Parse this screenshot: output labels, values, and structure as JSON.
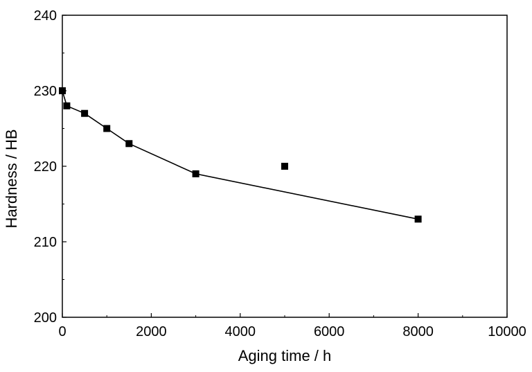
{
  "chart_data": {
    "type": "scatter",
    "title": "",
    "xlabel": "Aging time / h",
    "ylabel": "Hardness  / HB",
    "xlim": [
      0,
      10000
    ],
    "ylim": [
      200,
      240
    ],
    "xticks": [
      0,
      2000,
      4000,
      6000,
      8000,
      10000
    ],
    "yticks": [
      200,
      210,
      220,
      230,
      240
    ],
    "xtick_labels": [
      "0",
      "2000",
      "4000",
      "6000",
      "8000",
      "10000"
    ],
    "ytick_labels": [
      "200",
      "210",
      "220",
      "230",
      "240"
    ],
    "grid": false,
    "legend": "none",
    "series": [
      {
        "marker": "square",
        "color": "#000000",
        "points": [
          {
            "x": 0,
            "y": 230
          },
          {
            "x": 100,
            "y": 228
          },
          {
            "x": 500,
            "y": 227
          },
          {
            "x": 1000,
            "y": 225
          },
          {
            "x": 1500,
            "y": 223
          },
          {
            "x": 3000,
            "y": 219
          },
          {
            "x": 5000,
            "y": 220
          },
          {
            "x": 8000,
            "y": 213
          }
        ]
      }
    ],
    "trend_line": {
      "style": "solid",
      "color": "#000000",
      "points": [
        {
          "x": 0,
          "y": 230
        },
        {
          "x": 100,
          "y": 228
        },
        {
          "x": 500,
          "y": 227
        },
        {
          "x": 1000,
          "y": 225
        },
        {
          "x": 1500,
          "y": 223
        },
        {
          "x": 3000,
          "y": 219
        },
        {
          "x": 8000,
          "y": 213
        }
      ]
    }
  }
}
